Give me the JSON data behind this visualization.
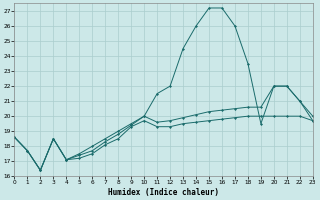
{
  "xlabel": "Humidex (Indice chaleur)",
  "bg_color": "#cce8e8",
  "grid_color": "#aacece",
  "line_color": "#1a6b6b",
  "x_min": 0,
  "x_max": 23,
  "y_min": 16,
  "y_max": 27.5,
  "yticks": [
    16,
    17,
    18,
    19,
    20,
    21,
    22,
    23,
    24,
    25,
    26,
    27
  ],
  "line1_x": [
    0,
    1,
    2,
    3,
    4,
    5,
    6,
    7,
    8,
    9,
    10,
    11,
    12,
    13,
    14,
    15,
    16,
    17,
    18,
    19,
    20,
    21,
    22,
    23
  ],
  "line1_y": [
    18.6,
    17.7,
    16.4,
    18.5,
    17.1,
    17.2,
    17.5,
    18.1,
    18.5,
    19.3,
    19.7,
    19.3,
    19.3,
    19.5,
    19.6,
    19.7,
    19.8,
    19.9,
    20.0,
    20.0,
    20.0,
    20.0,
    20.0,
    19.7
  ],
  "line2_x": [
    0,
    1,
    2,
    3,
    4,
    5,
    6,
    7,
    8,
    9,
    10,
    11,
    12,
    13,
    14,
    15,
    16,
    17,
    18,
    19,
    20,
    21,
    22,
    23
  ],
  "line2_y": [
    18.6,
    17.7,
    16.4,
    18.5,
    17.1,
    17.4,
    17.7,
    18.3,
    18.8,
    19.4,
    20.0,
    19.6,
    19.7,
    19.9,
    20.1,
    20.3,
    20.4,
    20.5,
    20.6,
    20.6,
    22.0,
    22.0,
    21.0,
    20.0
  ],
  "line3_x": [
    0,
    1,
    2,
    3,
    4,
    5,
    6,
    7,
    8,
    9,
    10,
    11,
    12,
    13,
    14,
    15,
    16,
    17,
    18,
    19,
    20,
    21,
    22,
    23
  ],
  "line3_y": [
    18.6,
    17.7,
    16.4,
    18.5,
    17.1,
    17.5,
    18.0,
    18.5,
    19.0,
    19.5,
    20.0,
    21.5,
    22.0,
    24.5,
    26.0,
    27.2,
    27.2,
    26.0,
    23.5,
    19.5,
    22.0,
    22.0,
    21.0,
    19.7
  ]
}
